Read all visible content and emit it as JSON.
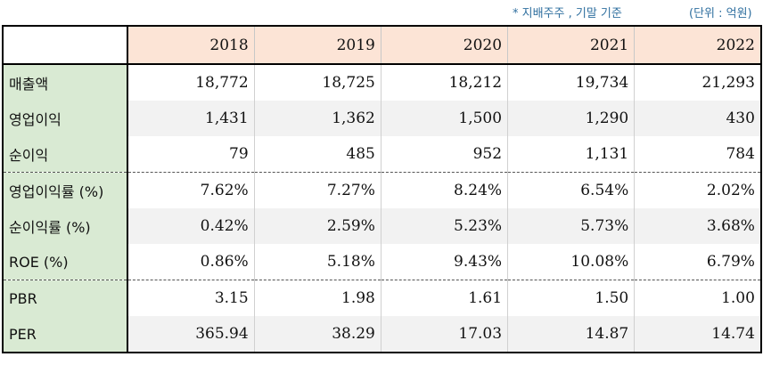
{
  "notes": {
    "basis": "* 지배주주 , 기말 기준",
    "unit": "(단위 : 억원)"
  },
  "table": {
    "columns": [
      "2018",
      "2019",
      "2020",
      "2021",
      "2022"
    ],
    "rows": [
      {
        "label": "매출액",
        "values": [
          "18,772",
          "18,725",
          "18,212",
          "19,734",
          "21,293"
        ]
      },
      {
        "label": "영업이익",
        "values": [
          "1,431",
          "1,362",
          "1,500",
          "1,290",
          "430"
        ]
      },
      {
        "label": "순이익",
        "values": [
          "79",
          "485",
          "952",
          "1,131",
          "784"
        ]
      },
      {
        "label": "영업이익률 (%)",
        "values": [
          "7.62%",
          "7.27%",
          "8.24%",
          "6.54%",
          "2.02%"
        ]
      },
      {
        "label": "순이익률 (%)",
        "values": [
          "0.42%",
          "2.59%",
          "5.23%",
          "5.73%",
          "3.68%"
        ]
      },
      {
        "label": "ROE (%)",
        "values": [
          "0.86%",
          "5.18%",
          "9.43%",
          "10.08%",
          "6.79%"
        ]
      },
      {
        "label": "PBR",
        "values": [
          "3.15",
          "1.98",
          "1.61",
          "1.50",
          "1.00"
        ]
      },
      {
        "label": "PER",
        "values": [
          "365.94",
          "38.29",
          "17.03",
          "14.87",
          "14.74"
        ]
      }
    ]
  },
  "colors": {
    "header_fill": "#fce4d6",
    "label_fill": "#d9ead3",
    "alt_row_fill": "#f2f2f2",
    "note_text": "#2f6f9f"
  }
}
